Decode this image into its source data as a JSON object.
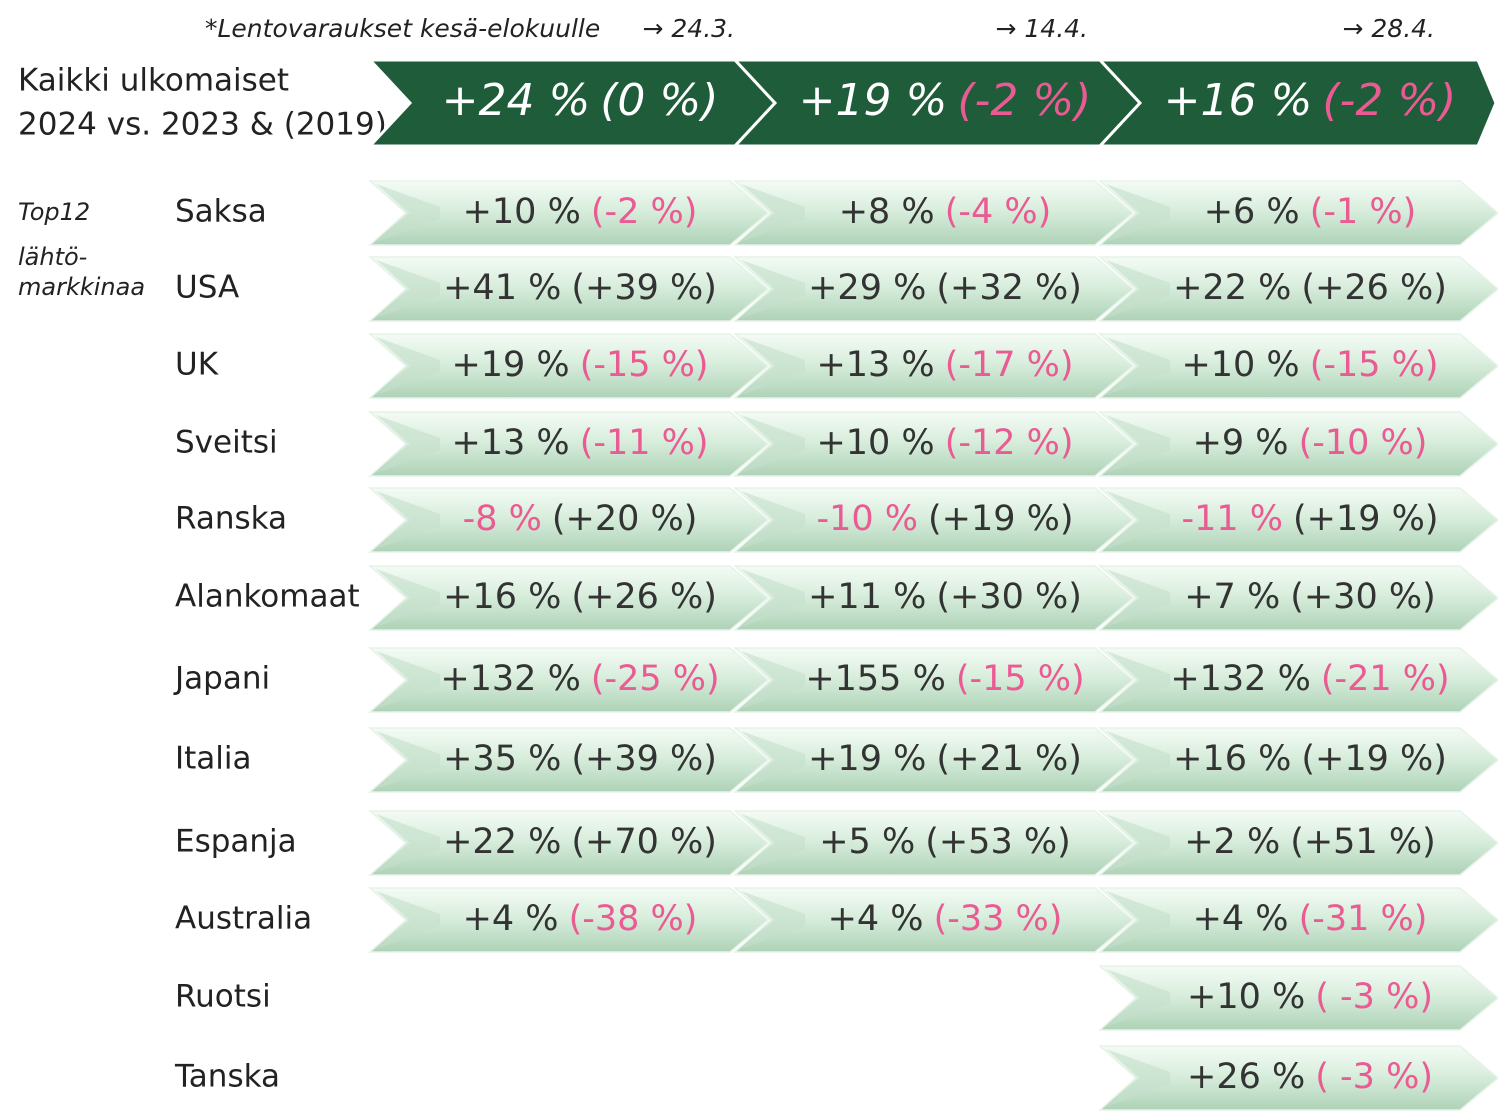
{
  "note": "*Lentovaraukset kesä-elokuulle",
  "dates": [
    "→ 24.3.",
    "→ 14.4.",
    "→ 28.4."
  ],
  "total": {
    "label": [
      "Kaikki ulkomaiset",
      "2024 vs. 2023 & (2019)"
    ],
    "cells": [
      {
        "main": "+24 %",
        "compare": "(0 %)"
      },
      {
        "main": "+19 %",
        "compare": "(-2 %)"
      },
      {
        "main": "+16 %",
        "compare": "(-2 %)"
      }
    ]
  },
  "side_label": [
    "Top12",
    "lähtö-",
    "markkinaa"
  ],
  "rows": [
    {
      "country": "Saksa",
      "cells": [
        {
          "main": "+10 %",
          "compare": "(-2 %)"
        },
        {
          "main": "+8 %",
          "compare": "(-4 %)"
        },
        {
          "main": "+6 %",
          "compare": "(-1 %)"
        }
      ]
    },
    {
      "country": "USA",
      "cells": [
        {
          "main": "+41 %",
          "compare": "(+39 %)"
        },
        {
          "main": "+29 %",
          "compare": "(+32 %)"
        },
        {
          "main": "+22 %",
          "compare": "(+26 %)"
        }
      ]
    },
    {
      "country": "UK",
      "cells": [
        {
          "main": "+19 %",
          "compare": "(-15 %)"
        },
        {
          "main": "+13 %",
          "compare": "(-17 %)"
        },
        {
          "main": "+10 %",
          "compare": "(-15 %)"
        }
      ]
    },
    {
      "country": "Sveitsi",
      "cells": [
        {
          "main": "+13 %",
          "compare": "(-11 %)"
        },
        {
          "main": "+10 %",
          "compare": "(-12 %)"
        },
        {
          "main": "+9 %",
          "compare": "(-10 %)"
        }
      ]
    },
    {
      "country": "Ranska",
      "cells": [
        {
          "main": "-8 %",
          "compare": "(+20 %)"
        },
        {
          "main": "-10 %",
          "compare": "(+19 %)"
        },
        {
          "main": "-11 %",
          "compare": "(+19 %)"
        }
      ]
    },
    {
      "country": "Alankomaat",
      "cells": [
        {
          "main": "+16 %",
          "compare": "(+26 %)"
        },
        {
          "main": "+11 %",
          "compare": "(+30 %)"
        },
        {
          "main": "+7 %",
          "compare": "(+30 %)"
        }
      ]
    },
    {
      "country": "Japani",
      "cells": [
        {
          "main": "+132 %",
          "compare": "(-25 %)"
        },
        {
          "main": "+155 %",
          "compare": "(-15 %)"
        },
        {
          "main": "+132 %",
          "compare": "(-21 %)"
        }
      ]
    },
    {
      "country": "Italia",
      "cells": [
        {
          "main": "+35 %",
          "compare": "(+39 %)"
        },
        {
          "main": "+19 %",
          "compare": "(+21 %)"
        },
        {
          "main": "+16 %",
          "compare": "(+19 %)"
        }
      ]
    },
    {
      "country": "Espanja",
      "cells": [
        {
          "main": "+22 %",
          "compare": "(+70 %)"
        },
        {
          "main": "+5 %",
          "compare": "(+53 %)"
        },
        {
          "main": "+2 %",
          "compare": "(+51 %)"
        }
      ]
    },
    {
      "country": "Australia",
      "cells": [
        {
          "main": "+4 %",
          "compare": "(-38 %)"
        },
        {
          "main": "+4 %",
          "compare": "(-33 %)"
        },
        {
          "main": "+4 %",
          "compare": "(-31 %)"
        }
      ]
    },
    {
      "country": "Ruotsi",
      "cells": [
        null,
        null,
        {
          "main": "+10 %",
          "compare": "( -3 %)"
        }
      ]
    },
    {
      "country": "Tanska",
      "cells": [
        null,
        null,
        {
          "main": "+26 %",
          "compare": "( -3 %)"
        }
      ]
    }
  ]
}
